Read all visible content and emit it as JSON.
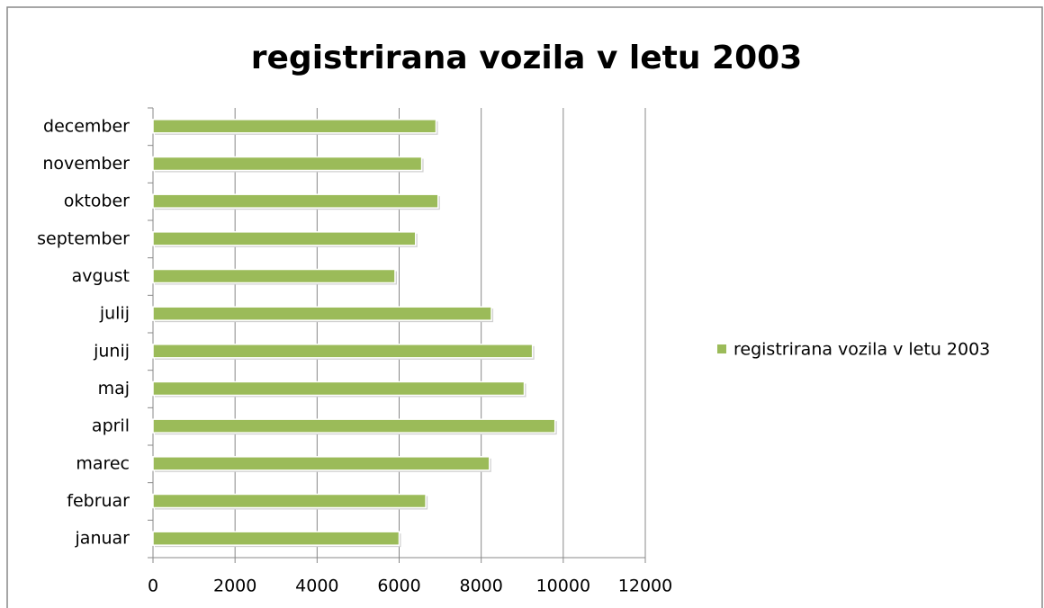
{
  "chart_data": {
    "type": "bar",
    "orientation": "horizontal",
    "title": "registrirana vozila v letu 2003",
    "categories": [
      "januar",
      "februar",
      "marec",
      "april",
      "maj",
      "junij",
      "julij",
      "avgust",
      "september",
      "oktober",
      "november",
      "december"
    ],
    "series": [
      {
        "name": "registrirana vozila v letu 2003",
        "color": "#9bbb59",
        "values": [
          6000,
          6650,
          8200,
          9800,
          9050,
          9250,
          8250,
          5900,
          6400,
          6950,
          6550,
          6900
        ]
      }
    ],
    "xlim": [
      0,
      12000
    ],
    "xticks": [
      0,
      2000,
      4000,
      6000,
      8000,
      10000,
      12000
    ],
    "grid": true,
    "legend": "right"
  }
}
